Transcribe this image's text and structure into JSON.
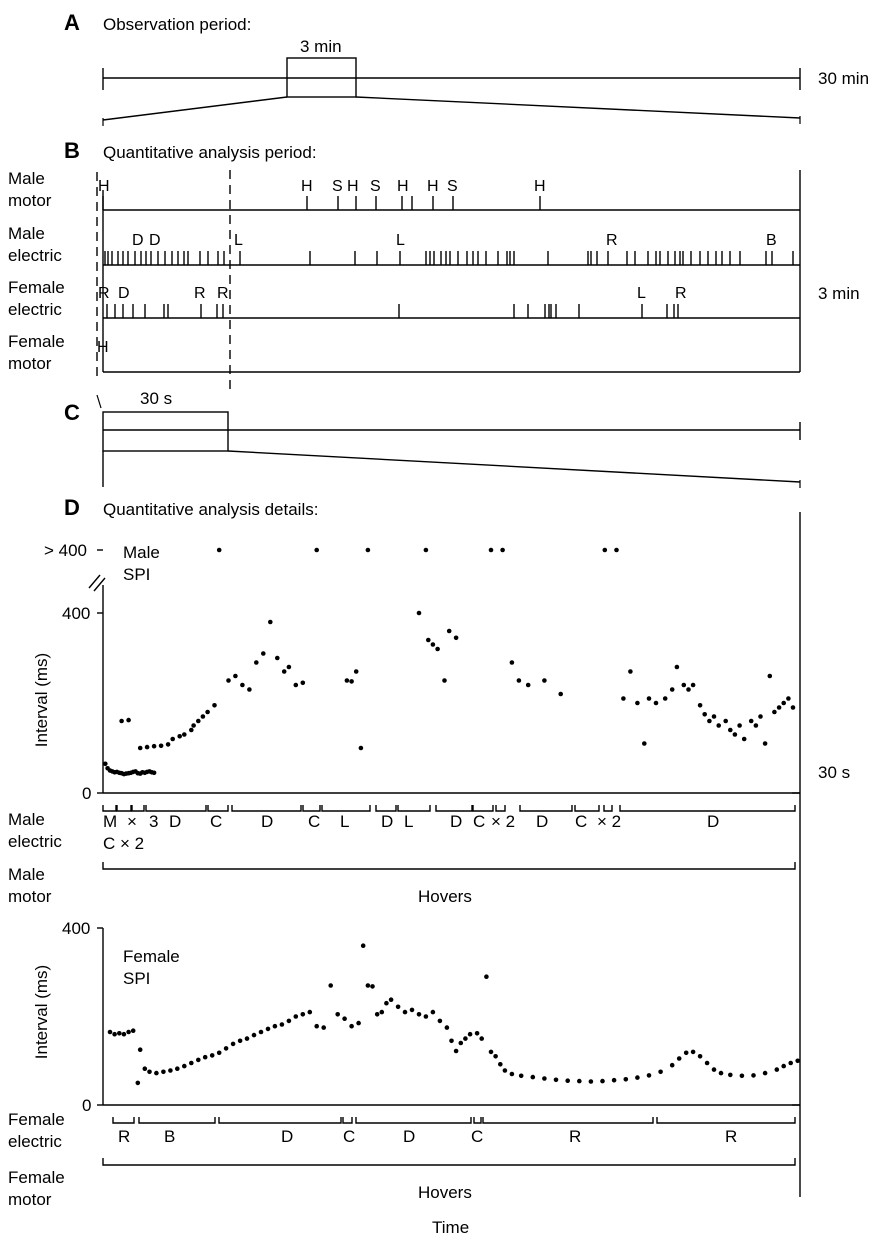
{
  "panels": {
    "A": {
      "letter": "A",
      "title": "Observation period:",
      "box_label": "3 min",
      "duration_label": "30 min"
    },
    "B": {
      "letter": "B",
      "title": "Quantitative analysis period:",
      "duration_label": "3 min",
      "rows": [
        {
          "label_line1": "Male",
          "label_line2": "motor",
          "events": [
            "H",
            "H",
            "S",
            "H",
            "S",
            "H",
            "H",
            "S",
            "H"
          ]
        },
        {
          "label_line1": "Male",
          "label_line2": "electric",
          "events": [
            "D",
            "D",
            "L",
            "L",
            "R",
            "B"
          ]
        },
        {
          "label_line1": "Female",
          "label_line2": "electric",
          "events": [
            "R",
            "D",
            "R",
            "R",
            "L",
            "R"
          ]
        },
        {
          "label_line1": "Female",
          "label_line2": "motor",
          "events": [
            "H"
          ]
        }
      ]
    },
    "C": {
      "letter": "C",
      "box_label": "30 s",
      "duration_label": "30 s"
    },
    "D": {
      "letter": "D",
      "title": "Quantitative analysis details:",
      "xlabel": "Time"
    }
  },
  "chart_data": [
    {
      "type": "scatter",
      "title": "Male SPI",
      "title_line1": "Male",
      "title_line2": "SPI",
      "ylabel": "Interval (ms)",
      "xlabel": "Time",
      "x_range": [
        0,
        30
      ],
      "ylim": [
        0,
        400
      ],
      "yticks": [
        "0",
        "400",
        "> 400"
      ],
      "overflow_label": "> 400",
      "overflow_x": [
        5.0,
        9.2,
        11.4,
        13.9,
        16.7,
        17.2,
        21.6,
        22.1
      ],
      "series": [
        {
          "x": [
            0.1,
            0.2,
            0.3,
            0.4,
            0.5,
            0.6,
            0.7,
            0.8,
            0.9,
            1.0,
            1.1,
            1.2,
            1.3,
            1.4,
            1.5,
            1.6,
            1.7,
            1.8,
            1.9,
            2.0,
            2.1,
            2.2,
            0.8,
            1.1,
            1.6,
            1.9,
            2.2,
            2.5,
            2.8,
            3.0,
            3.3,
            3.5,
            3.8,
            3.9,
            4.1,
            4.3,
            4.5,
            4.8,
            5.4,
            5.7,
            6.0,
            6.3,
            6.6,
            6.9,
            7.2,
            7.5,
            7.8,
            8.0,
            8.3,
            8.6,
            10.5,
            10.7,
            10.9,
            11.1,
            13.6,
            14.0,
            14.2,
            14.4,
            14.7,
            14.9,
            15.2,
            17.6,
            17.9,
            18.3,
            19.0,
            19.7,
            22.4,
            22.7,
            23.0,
            23.3,
            23.5,
            23.8,
            24.2,
            24.5,
            24.7,
            25.0,
            25.2,
            25.4,
            25.7,
            25.9,
            26.1,
            26.3,
            26.5,
            26.8,
            27.0,
            27.2,
            27.4,
            27.6,
            27.9,
            28.1,
            28.3,
            28.5,
            28.7,
            28.9,
            29.1,
            29.3,
            29.5,
            29.7
          ],
          "y": [
            65,
            55,
            50,
            48,
            46,
            47,
            45,
            44,
            42,
            43,
            44,
            45,
            47,
            48,
            44,
            43,
            46,
            45,
            47,
            48,
            46,
            45,
            160,
            162,
            100,
            102,
            104,
            105,
            108,
            120,
            126,
            130,
            140,
            150,
            160,
            170,
            180,
            195,
            250,
            260,
            240,
            230,
            290,
            310,
            380,
            300,
            270,
            280,
            240,
            245,
            250,
            248,
            270,
            100,
            400,
            340,
            330,
            320,
            250,
            360,
            345,
            290,
            250,
            240,
            250,
            220,
            210,
            270,
            200,
            110,
            210,
            200,
            210,
            230,
            280,
            240,
            230,
            240,
            195,
            175,
            160,
            170,
            150,
            160,
            140,
            130,
            150,
            120,
            160,
            150,
            170,
            110,
            260,
            180,
            190,
            200,
            210,
            190
          ]
        }
      ],
      "segments_row_label": [
        "Male",
        "electric"
      ],
      "segments": [
        "M",
        "×",
        "3",
        "D",
        "C",
        "D",
        "C",
        "L",
        "D",
        "L",
        "D",
        "C",
        "× 2",
        "D",
        "C",
        "× 2",
        "D"
      ],
      "segments_sub": "C × 2",
      "motor_row_label": [
        "Male",
        "motor"
      ],
      "motor_label": "Hovers"
    },
    {
      "type": "scatter",
      "title": "Female SPI",
      "title_line1": "Female",
      "title_line2": "SPI",
      "ylabel": "Interval (ms)",
      "xlabel": "Time",
      "x_range": [
        0,
        30
      ],
      "ylim": [
        0,
        400
      ],
      "yticks": [
        "0",
        "400"
      ],
      "series": [
        {
          "x": [],
          "y": []
        }
      ],
      "segments_row_label": [
        "Female",
        "electric"
      ],
      "segments": [
        "R",
        "B",
        "D",
        "C",
        "D",
        "C",
        "R",
        "R"
      ],
      "motor_row_label": [
        "Female",
        "motor"
      ],
      "motor_label": "Hovers"
    }
  ]
}
